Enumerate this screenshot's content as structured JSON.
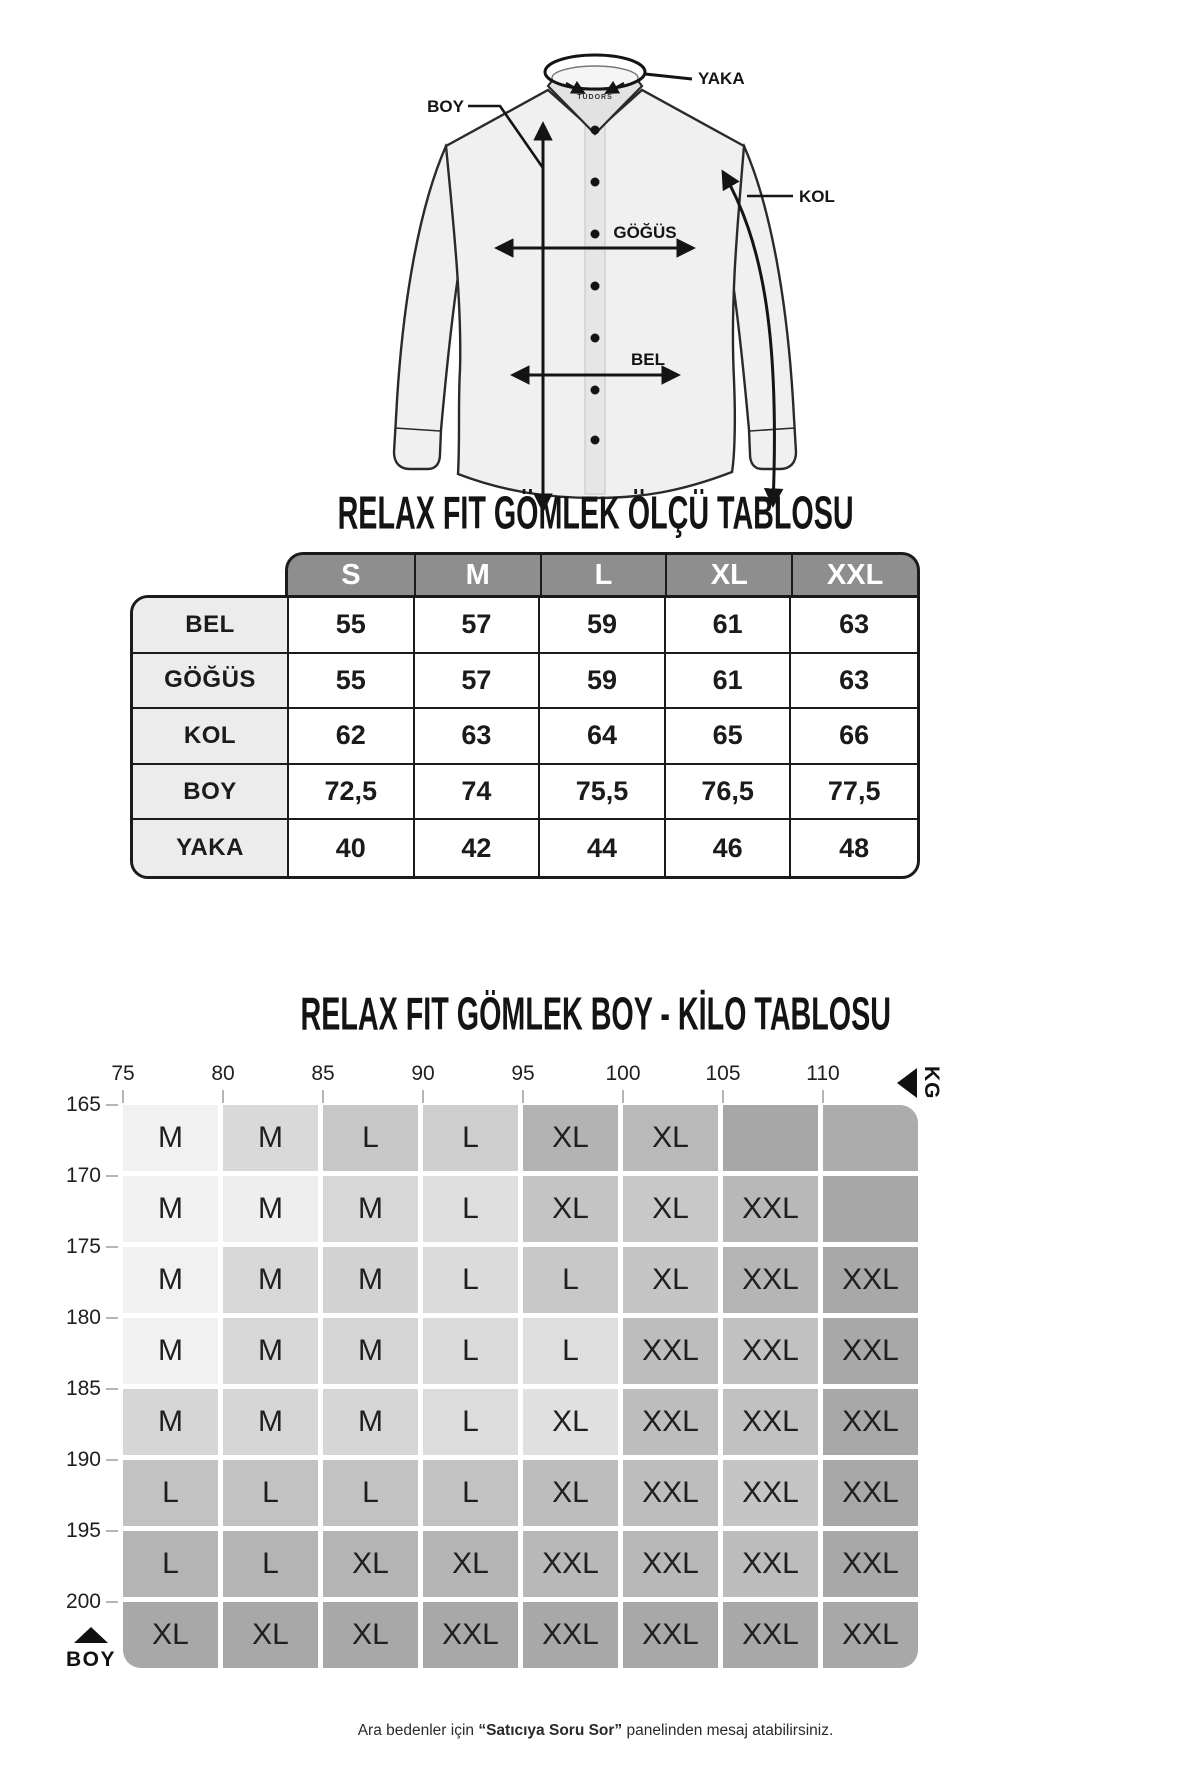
{
  "diagram": {
    "brand": "TUDORS",
    "labels": {
      "yaka": "YAKA",
      "boy": "BOY",
      "kol": "KOL",
      "gogus": "GÖĞÜS",
      "bel": "BEL"
    }
  },
  "size_table": {
    "title": "RELAX FIT GÖMLEK ÖLÇÜ TABLOSU",
    "columns": [
      "S",
      "M",
      "L",
      "XL",
      "XXL"
    ],
    "rows": [
      {
        "label": "BEL",
        "values": [
          "55",
          "57",
          "59",
          "61",
          "63"
        ]
      },
      {
        "label": "GÖĞÜS",
        "values": [
          "55",
          "57",
          "59",
          "61",
          "63"
        ]
      },
      {
        "label": "KOL",
        "values": [
          "62",
          "63",
          "64",
          "65",
          "66"
        ]
      },
      {
        "label": "BOY",
        "values": [
          "72,5",
          "74",
          "75,5",
          "76,5",
          "77,5"
        ]
      },
      {
        "label": "YAKA",
        "values": [
          "40",
          "42",
          "44",
          "46",
          "48"
        ]
      }
    ]
  },
  "matrix": {
    "title": "RELAX FIT GÖMLEK BOY - KİLO TABLOSU",
    "kg_label": "KG",
    "boy_label": "BOY",
    "kg_ticks": [
      "75",
      "80",
      "85",
      "90",
      "95",
      "100",
      "105",
      "110"
    ],
    "boy_ticks": [
      "165",
      "170",
      "175",
      "180",
      "185",
      "190",
      "195",
      "200"
    ],
    "rows": [
      {
        "cells": [
          {
            "t": "M",
            "c": "#f1f1f1"
          },
          {
            "t": "M",
            "c": "#d9d9d9"
          },
          {
            "t": "L",
            "c": "#c7c7c7"
          },
          {
            "t": "L",
            "c": "#cecece"
          },
          {
            "t": "XL",
            "c": "#b3b3b3"
          },
          {
            "t": "XL",
            "c": "#b9b9b9"
          },
          {
            "t": "",
            "c": "#a7a7a7"
          },
          {
            "t": "",
            "c": "#acacac"
          }
        ]
      },
      {
        "cells": [
          {
            "t": "M",
            "c": "#f1f1f1"
          },
          {
            "t": "M",
            "c": "#eeeeee"
          },
          {
            "t": "M",
            "c": "#d7d7d7"
          },
          {
            "t": "L",
            "c": "#dedede"
          },
          {
            "t": "XL",
            "c": "#c4c4c4"
          },
          {
            "t": "XL",
            "c": "#c8c8c8"
          },
          {
            "t": "XXL",
            "c": "#b8b8b8"
          },
          {
            "t": "",
            "c": "#a7a7a7"
          }
        ]
      },
      {
        "cells": [
          {
            "t": "M",
            "c": "#f1f1f1"
          },
          {
            "t": "M",
            "c": "#d7d7d7"
          },
          {
            "t": "M",
            "c": "#d2d2d2"
          },
          {
            "t": "L",
            "c": "#dbdbdb"
          },
          {
            "t": "L",
            "c": "#c8c8c8"
          },
          {
            "t": "XL",
            "c": "#c5c5c5"
          },
          {
            "t": "XXL",
            "c": "#b5b5b5"
          },
          {
            "t": "XXL",
            "c": "#a8a8a8"
          }
        ]
      },
      {
        "cells": [
          {
            "t": "M",
            "c": "#f1f1f1"
          },
          {
            "t": "M",
            "c": "#d7d7d7"
          },
          {
            "t": "M",
            "c": "#d5d5d5"
          },
          {
            "t": "L",
            "c": "#dadada"
          },
          {
            "t": "L",
            "c": "#dedede"
          },
          {
            "t": "XXL",
            "c": "#bdbdbd"
          },
          {
            "t": "XXL",
            "c": "#c1c1c1"
          },
          {
            "t": "XXL",
            "c": "#a8a8a8"
          }
        ]
      },
      {
        "cells": [
          {
            "t": "M",
            "c": "#d6d6d6"
          },
          {
            "t": "M",
            "c": "#d6d6d6"
          },
          {
            "t": "M",
            "c": "#d6d6d6"
          },
          {
            "t": "L",
            "c": "#dcdcdc"
          },
          {
            "t": "XL",
            "c": "#e0e0e0"
          },
          {
            "t": "XXL",
            "c": "#bdbdbd"
          },
          {
            "t": "XXL",
            "c": "#c1c1c1"
          },
          {
            "t": "XXL",
            "c": "#a8a8a8"
          }
        ]
      },
      {
        "cells": [
          {
            "t": "L",
            "c": "#c2c2c2"
          },
          {
            "t": "L",
            "c": "#c2c2c2"
          },
          {
            "t": "L",
            "c": "#c2c2c2"
          },
          {
            "t": "L",
            "c": "#c2c2c2"
          },
          {
            "t": "XL",
            "c": "#bdbdbd"
          },
          {
            "t": "XXL",
            "c": "#bdbdbd"
          },
          {
            "t": "XXL",
            "c": "#c5c5c5"
          },
          {
            "t": "XXL",
            "c": "#a8a8a8"
          }
        ]
      },
      {
        "cells": [
          {
            "t": "L",
            "c": "#b4b4b4"
          },
          {
            "t": "L",
            "c": "#b4b4b4"
          },
          {
            "t": "XL",
            "c": "#b4b4b4"
          },
          {
            "t": "XL",
            "c": "#b4b4b4"
          },
          {
            "t": "XXL",
            "c": "#b8b8b8"
          },
          {
            "t": "XXL",
            "c": "#b8b8b8"
          },
          {
            "t": "XXL",
            "c": "#bcbcbc"
          },
          {
            "t": "XXL",
            "c": "#a8a8a8"
          }
        ]
      },
      {
        "cells": [
          {
            "t": "XL",
            "c": "#a8a8a8"
          },
          {
            "t": "XL",
            "c": "#a8a8a8"
          },
          {
            "t": "XL",
            "c": "#a8a8a8"
          },
          {
            "t": "XXL",
            "c": "#a8a8a8"
          },
          {
            "t": "XXL",
            "c": "#a8a8a8"
          },
          {
            "t": "XXL",
            "c": "#a8a8a8"
          },
          {
            "t": "XXL",
            "c": "#a8a8a8"
          },
          {
            "t": "XXL",
            "c": "#a8a8a8"
          }
        ]
      }
    ]
  },
  "footer": {
    "pre": "Ara bedenler için ",
    "bold": "“Satıcıya Soru Sor”",
    "post": " panelinden mesaj atabilirsiniz."
  },
  "colors": {
    "table_header_bg": "#8e8e8e",
    "table_label_bg": "#ececec",
    "border": "#1b1b1b",
    "axis_tick": "#b5b5b5"
  }
}
